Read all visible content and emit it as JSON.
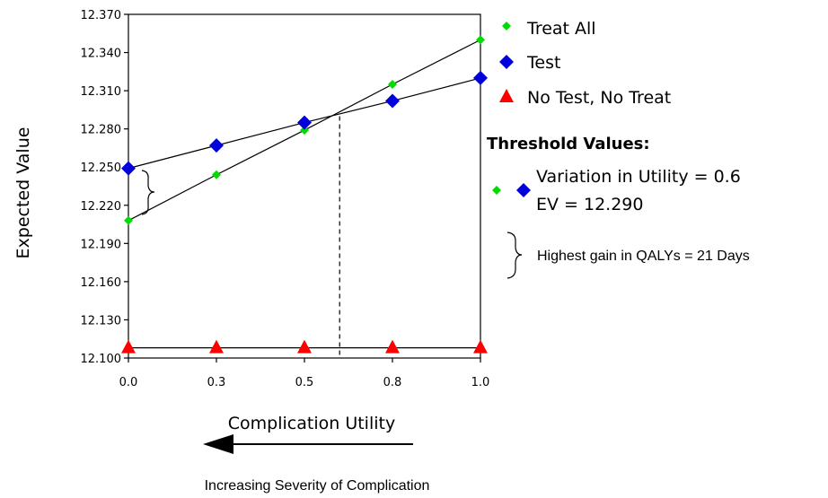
{
  "chart_data": {
    "type": "line",
    "xlabel": "Complication Utility",
    "ylabel": "Expected Value",
    "x_ticks": [
      "0.0",
      "0.3",
      "0.5",
      "0.8",
      "1.0"
    ],
    "y_ticks": [
      "12.100",
      "12.130",
      "12.160",
      "12.190",
      "12.220",
      "12.250",
      "12.280",
      "12.310",
      "12.340",
      "12.370"
    ],
    "xlim": [
      0,
      1
    ],
    "ylim": [
      12.1,
      12.37
    ],
    "x": [
      0.0,
      0.25,
      0.5,
      0.75,
      1.0
    ],
    "series": [
      {
        "name": "Treat All",
        "marker": "circle-diamond-small",
        "color": "#00dd00",
        "values": [
          12.208,
          12.244,
          12.279,
          12.315,
          12.35
        ]
      },
      {
        "name": "Test",
        "marker": "diamond",
        "color": "#0000dd",
        "values": [
          12.249,
          12.267,
          12.285,
          12.302,
          12.32
        ]
      },
      {
        "name": "No Test, No Treat",
        "marker": "triangle",
        "color": "#ff0000",
        "values": [
          12.108,
          12.108,
          12.108,
          12.108,
          12.108
        ]
      }
    ],
    "threshold_x": 0.6,
    "grid": false
  },
  "threshold": {
    "title": "Threshold Values:",
    "line1": "Variation in Utility = 0.6",
    "line2": "EV = 12.290"
  },
  "gain_text": "Highest gain in QALYs = 21 Days",
  "arrow_caption": "Increasing Severity of Complication"
}
